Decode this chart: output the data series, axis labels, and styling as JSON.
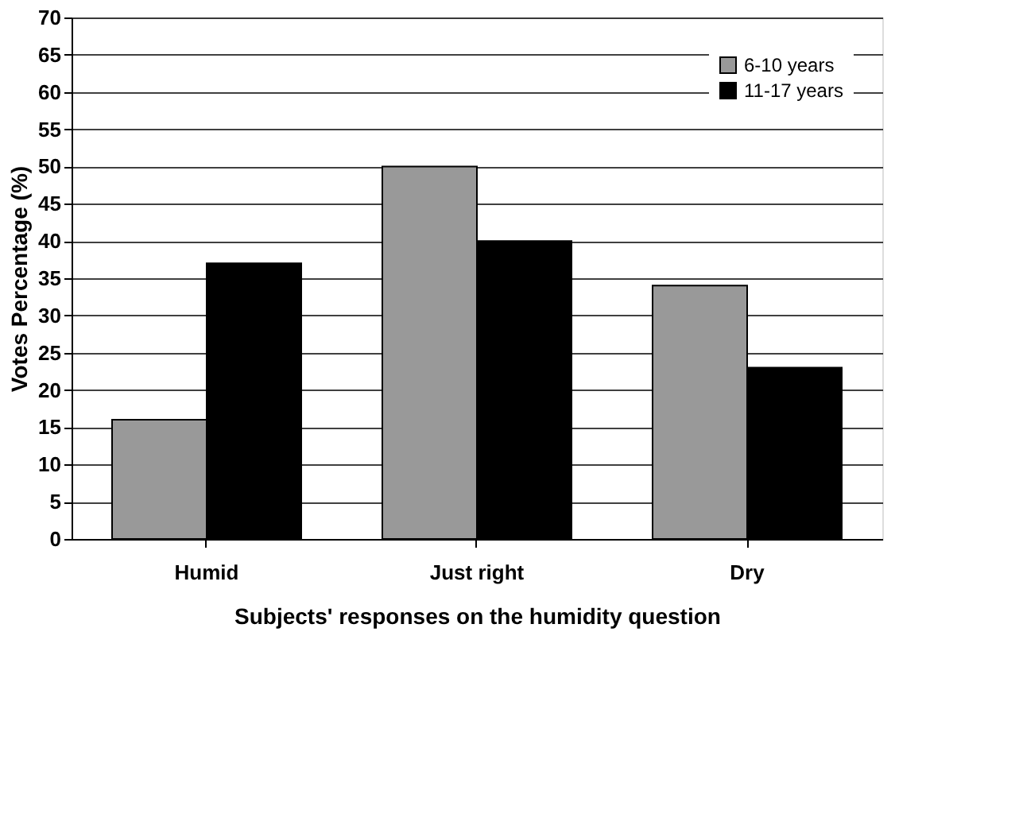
{
  "chart_data": {
    "type": "bar",
    "xlabel": "Subjects' responses on the humidity question",
    "ylabel": "Votes Percentage (%)",
    "categories": [
      "Humid",
      "Just right",
      "Dry"
    ],
    "series": [
      {
        "name": "6-10 years",
        "color": "#999999",
        "values": [
          16,
          50,
          34
        ]
      },
      {
        "name": "11-17 years",
        "color": "#000000",
        "values": [
          37,
          40,
          23
        ]
      }
    ],
    "ylim": [
      0,
      70
    ],
    "yticks": [
      0,
      5,
      10,
      15,
      20,
      25,
      30,
      35,
      40,
      45,
      50,
      55,
      60,
      65,
      70
    ],
    "grid": "y",
    "legend": "top right"
  }
}
